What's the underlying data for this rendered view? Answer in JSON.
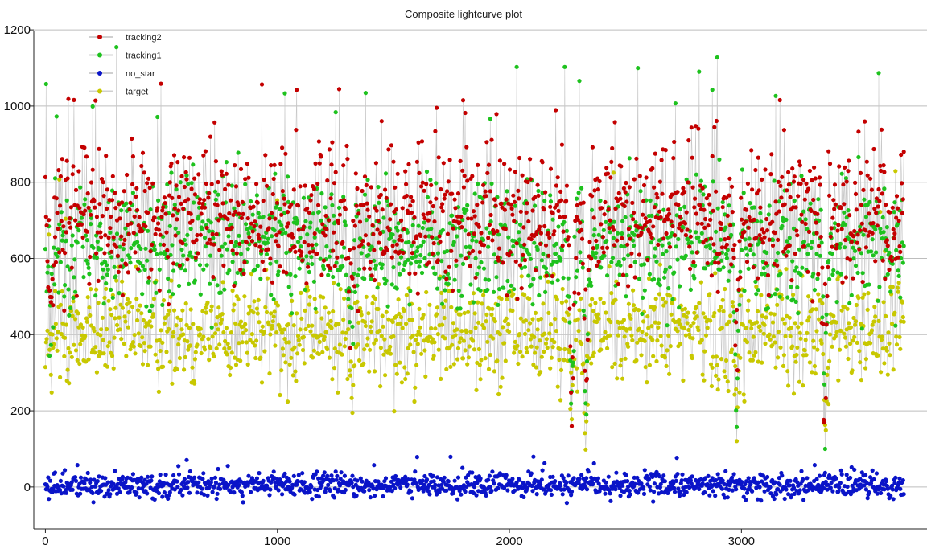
{
  "chart_data": {
    "type": "scatter",
    "title": "Composite lightcurve plot",
    "xlabel": "",
    "ylabel": "",
    "xlim": [
      -50,
      3800
    ],
    "ylim": [
      -110,
      1215
    ],
    "x_ticks": [
      0,
      1000,
      2000,
      3000
    ],
    "y_ticks": [
      0,
      200,
      400,
      600,
      800,
      1000,
      1200
    ],
    "grid": "horizontal",
    "legend_position": "top-left",
    "n_points_per_series": 3700,
    "x_range_data": [
      0,
      3700
    ],
    "dips": [
      {
        "x": 25,
        "depth": 0.55
      },
      {
        "x": 1320,
        "depth": 0.65
      },
      {
        "x": 2270,
        "depth": 0.95
      },
      {
        "x": 2330,
        "depth": 0.8
      },
      {
        "x": 2980,
        "depth": 0.85
      },
      {
        "x": 3360,
        "depth": 0.95
      }
    ],
    "series": [
      {
        "name": "tracking2",
        "color": "#c40000",
        "mean": 710,
        "spread": 85,
        "outlier_high": 1080
      },
      {
        "name": "tracking1",
        "color": "#1ec21e",
        "mean": 640,
        "spread": 80,
        "outlier_high": 1160
      },
      {
        "name": "no_star",
        "color": "#0a14c8",
        "mean": 5,
        "spread": 16,
        "outlier_high": 80
      },
      {
        "name": "target",
        "color": "#c8c800",
        "mean": 410,
        "spread": 70,
        "outlier_high": 870
      }
    ]
  }
}
